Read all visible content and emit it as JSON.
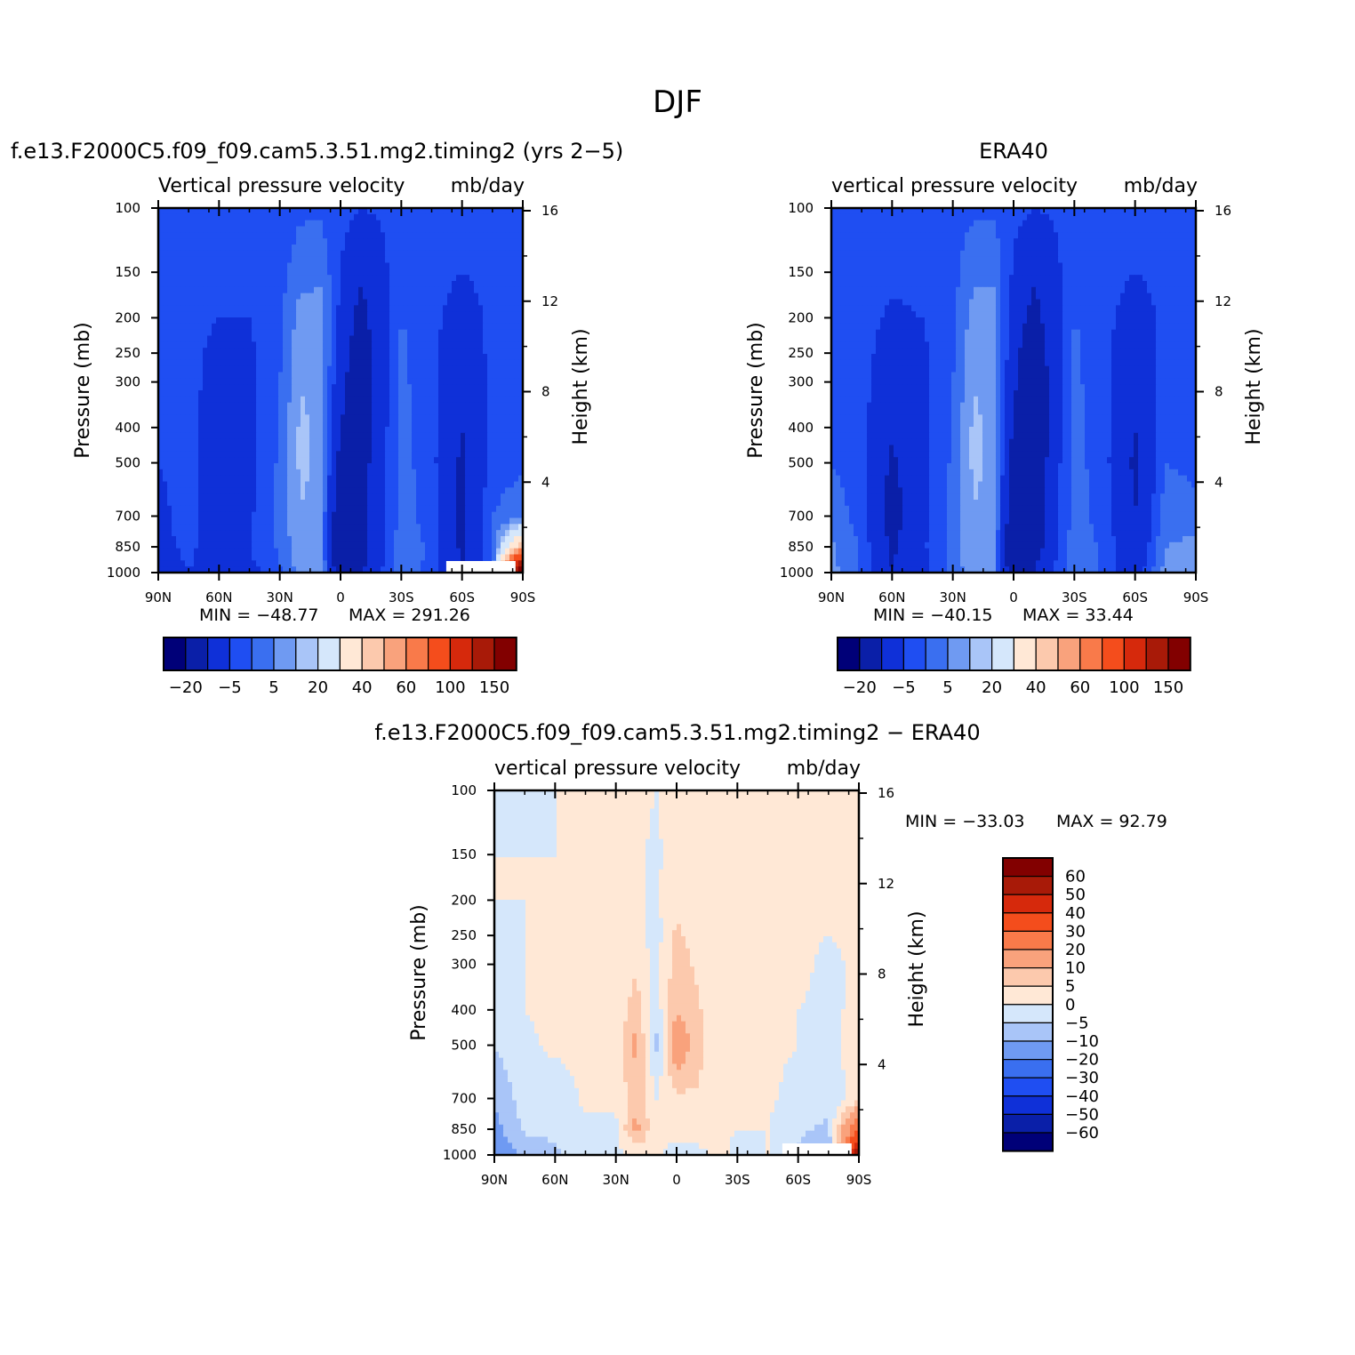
{
  "title": "DJF",
  "colors": {
    "model_scale": [
      "#000078",
      "#0a1fa8",
      "#0f30d8",
      "#1f4ef2",
      "#3a6ff0",
      "#6f9af2",
      "#a9c5f8",
      "#d5e7fb",
      "#ffe8d6",
      "#fcc9ad",
      "#f9a27c",
      "#f97a4a",
      "#f44d1c",
      "#d6290c",
      "#a81a08",
      "#820000"
    ],
    "diff_scale": [
      "#000078",
      "#0a1fa8",
      "#0f30d8",
      "#1f4ef2",
      "#3a6ff0",
      "#6f9af2",
      "#a9c5f8",
      "#d5e7fb",
      "#ffe8d6",
      "#fcc9ad",
      "#f9a27c",
      "#f97a4a",
      "#f44d1c",
      "#d6290c",
      "#a81a08",
      "#820000"
    ]
  },
  "panels": [
    {
      "title": "f.e13.F2000C5.f09_f09.cam5.3.51.mg2.timing2 (yrs 2−5)",
      "variable": "Vertical pressure velocity",
      "units": "mb/day",
      "min_label": "MIN =  −48.77",
      "max_label": "MAX =  291.26"
    },
    {
      "title": "ERA40",
      "variable": "vertical pressure velocity",
      "units": "mb/day",
      "min_label": "MIN =  −40.15",
      "max_label": "MAX =   33.44"
    },
    {
      "title": "f.e13.F2000C5.f09_f09.cam5.3.51.mg2.timing2 − ERA40",
      "variable": "vertical pressure velocity",
      "units": "mb/day",
      "min_label": "MIN = −33.03",
      "max_label": "MAX =   92.79"
    }
  ],
  "colorbar_model": {
    "labels": [
      "−20",
      "−5",
      "5",
      "20",
      "40",
      "60",
      "100",
      "150"
    ]
  },
  "colorbar_diff": {
    "labels": [
      "60",
      "50",
      "40",
      "30",
      "20",
      "10",
      "5",
      "0",
      "−5",
      "−10",
      "−20",
      "−30",
      "−40",
      "−50",
      "−60"
    ]
  },
  "chart_data": [
    {
      "type": "heatmap",
      "title": "f.e13.F2000C5.f09_f09.cam5.3.51.mg2.timing2 (yrs 2−5)",
      "subtitle": "Vertical pressure velocity mb/day",
      "xlabel": "",
      "ylabel": "Pressure (mb)",
      "y2label": "Height (km)",
      "x_ticks": [
        "90N",
        "60N",
        "30N",
        "0",
        "30S",
        "60S",
        "90S"
      ],
      "y_ticks": [
        100,
        150,
        200,
        250,
        300,
        400,
        500,
        700,
        850,
        1000
      ],
      "y2_ticks": [
        4,
        8,
        12,
        16
      ],
      "yscale": "log",
      "ylim": [
        1000,
        100
      ],
      "latitude": [
        90,
        75,
        60,
        45,
        30,
        20,
        10,
        0,
        -10,
        -20,
        -30,
        -45,
        -60,
        -75,
        -90
      ],
      "pressure": [
        1000,
        850,
        700,
        500,
        400,
        300,
        250,
        200,
        150,
        100
      ],
      "values": [
        [
          -15,
          -10,
          -14,
          -12,
          -6,
          2,
          4,
          -30,
          -22,
          -10,
          -3,
          -6,
          -20,
          -6,
          150
        ],
        [
          -13,
          -8,
          -16,
          -10,
          -4,
          4,
          3,
          -35,
          -24,
          -12,
          -2,
          -6,
          -22,
          -4,
          40
        ],
        [
          -12,
          -7,
          -16,
          -11,
          -4,
          5,
          3,
          -32,
          -25,
          -12,
          -3,
          -7,
          -22,
          -5,
          -2
        ],
        [
          -10,
          -8,
          -15,
          -12,
          -4,
          6,
          4,
          -25,
          -26,
          -12,
          -3,
          -8,
          -22,
          -7,
          -6
        ],
        [
          -9,
          -8,
          -14,
          -12,
          -5,
          6,
          4,
          -20,
          -28,
          -13,
          -3,
          -8,
          -20,
          -8,
          -8
        ],
        [
          -9,
          -8,
          -13,
          -12,
          -5,
          5,
          3,
          -16,
          -30,
          -14,
          -4,
          -8,
          -18,
          -8,
          -8
        ],
        [
          -9,
          -8,
          -12,
          -11,
          -6,
          4,
          3,
          -14,
          -28,
          -14,
          -4,
          -8,
          -16,
          -8,
          -8
        ],
        [
          -8,
          -8,
          -10,
          -10,
          -6,
          2,
          2,
          -12,
          -24,
          -13,
          -5,
          -8,
          -14,
          -8,
          -8
        ],
        [
          -8,
          -8,
          -8,
          -8,
          -7,
          -2,
          -1,
          -10,
          -18,
          -12,
          -6,
          -7,
          -10,
          -8,
          -8
        ],
        [
          -8,
          -8,
          -8,
          -8,
          -8,
          -6,
          -6,
          -8,
          -10,
          -9,
          -8,
          -8,
          -8,
          -8,
          -8
        ]
      ],
      "missing_region": "below ground near 60S–90S, 1000 mb",
      "colorbar_labels": [
        "−20",
        "−5",
        "5",
        "20",
        "40",
        "60",
        "100",
        "150"
      ],
      "min": -48.77,
      "max": 291.26
    },
    {
      "type": "heatmap",
      "title": "ERA40",
      "subtitle": "vertical pressure velocity mb/day",
      "xlabel": "",
      "ylabel": "Pressure (mb)",
      "y2label": "Height (km)",
      "x_ticks": [
        "90N",
        "60N",
        "30N",
        "0",
        "30S",
        "60S",
        "90S"
      ],
      "y_ticks": [
        100,
        150,
        200,
        250,
        300,
        400,
        500,
        700,
        850,
        1000
      ],
      "y2_ticks": [
        4,
        8,
        12,
        16
      ],
      "yscale": "log",
      "ylim": [
        1000,
        100
      ],
      "latitude": [
        90,
        75,
        60,
        45,
        30,
        20,
        10,
        0,
        -10,
        -20,
        -30,
        -45,
        -60,
        -75,
        -90
      ],
      "pressure": [
        1000,
        850,
        700,
        500,
        400,
        300,
        250,
        200,
        150,
        100
      ],
      "values": [
        [
          2,
          -6,
          -20,
          -12,
          -4,
          4,
          2,
          -30,
          -20,
          -10,
          -2,
          -6,
          -15,
          2,
          4
        ],
        [
          1,
          -6,
          -22,
          -11,
          -3,
          5,
          3,
          -34,
          -26,
          -12,
          -2,
          -6,
          -18,
          0,
          2
        ],
        [
          -2,
          -7,
          -24,
          -12,
          -4,
          5,
          3,
          -30,
          -28,
          -12,
          -3,
          -7,
          -20,
          -2,
          -4
        ],
        [
          -5,
          -8,
          -22,
          -12,
          -4,
          6,
          4,
          -26,
          -32,
          -13,
          -3,
          -8,
          -22,
          -5,
          -6
        ],
        [
          -7,
          -8,
          -18,
          -12,
          -5,
          6,
          4,
          -22,
          -34,
          -14,
          -3,
          -8,
          -20,
          -6,
          -8
        ],
        [
          -8,
          -8,
          -15,
          -12,
          -5,
          5,
          3,
          -18,
          -32,
          -14,
          -4,
          -8,
          -18,
          -7,
          -8
        ],
        [
          -8,
          -8,
          -13,
          -11,
          -6,
          4,
          3,
          -16,
          -30,
          -14,
          -4,
          -8,
          -16,
          -8,
          -8
        ],
        [
          -8,
          -8,
          -11,
          -10,
          -6,
          2,
          2,
          -14,
          -24,
          -13,
          -5,
          -8,
          -14,
          -8,
          -8
        ],
        [
          -8,
          -8,
          -9,
          -8,
          -7,
          -1,
          -1,
          -11,
          -18,
          -12,
          -6,
          -7,
          -10,
          -8,
          -8
        ],
        [
          -8,
          -8,
          -8,
          -8,
          -8,
          -6,
          -6,
          -8,
          -10,
          -9,
          -8,
          -8,
          -8,
          -8,
          -8
        ]
      ],
      "colorbar_labels": [
        "−20",
        "−5",
        "5",
        "20",
        "40",
        "60",
        "100",
        "150"
      ],
      "min": -40.15,
      "max": 33.44
    },
    {
      "type": "heatmap",
      "title": "f.e13.F2000C5.f09_f09.cam5.3.51.mg2.timing2 − ERA40",
      "subtitle": "vertical pressure velocity mb/day",
      "xlabel": "",
      "ylabel": "Pressure (mb)",
      "y2label": "Height (km)",
      "x_ticks": [
        "90N",
        "60N",
        "30N",
        "0",
        "30S",
        "60S",
        "90S"
      ],
      "y_ticks": [
        100,
        150,
        200,
        250,
        300,
        400,
        500,
        700,
        850,
        1000
      ],
      "y2_ticks": [
        4,
        8,
        12,
        16
      ],
      "yscale": "log",
      "ylim": [
        1000,
        100
      ],
      "latitude": [
        90,
        75,
        60,
        45,
        30,
        20,
        10,
        0,
        -10,
        -20,
        -30,
        -45,
        -60,
        -75,
        -90
      ],
      "pressure": [
        1000,
        850,
        700,
        500,
        400,
        300,
        250,
        200,
        150,
        100
      ],
      "values": [
        [
          -17,
          -8,
          -6,
          -3,
          -2,
          1,
          1,
          -2,
          -2,
          1,
          -1,
          0,
          -6,
          -10,
          60
        ],
        [
          -12,
          -4,
          -4,
          -1,
          -1,
          12,
          1,
          2,
          3,
          1,
          0,
          0,
          -4,
          -6,
          30
        ],
        [
          -9,
          -3,
          -3,
          1,
          1,
          8,
          0,
          4,
          4,
          1,
          0,
          1,
          -2,
          -3,
          2
        ],
        [
          -5,
          -1,
          1,
          1,
          1,
          12,
          -6,
          15,
          8,
          1,
          0,
          1,
          0,
          -1,
          2
        ],
        [
          -2,
          0,
          1,
          1,
          1,
          8,
          -3,
          10,
          6,
          1,
          0,
          1,
          0,
          -1,
          1
        ],
        [
          -1,
          0,
          1,
          1,
          1,
          4,
          -2,
          8,
          4,
          1,
          0,
          1,
          1,
          -1,
          1
        ],
        [
          -1,
          0,
          1,
          1,
          1,
          2,
          -2,
          6,
          3,
          1,
          0,
          1,
          1,
          0,
          1
        ],
        [
          0,
          0,
          1,
          1,
          1,
          1,
          -1,
          4,
          2,
          1,
          0,
          1,
          1,
          0,
          0
        ],
        [
          0,
          0,
          0,
          1,
          1,
          1,
          -1,
          3,
          1,
          0,
          0,
          1,
          1,
          0,
          0
        ],
        [
          0,
          -1,
          0,
          0,
          1,
          1,
          0,
          1,
          0,
          0,
          0,
          1,
          0,
          0,
          0
        ]
      ],
      "colorbar_labels": [
        "60",
        "50",
        "40",
        "30",
        "20",
        "10",
        "5",
        "0",
        "−5",
        "−10",
        "−20",
        "−30",
        "−40",
        "−50",
        "−60"
      ],
      "min": -33.03,
      "max": 92.79
    }
  ]
}
